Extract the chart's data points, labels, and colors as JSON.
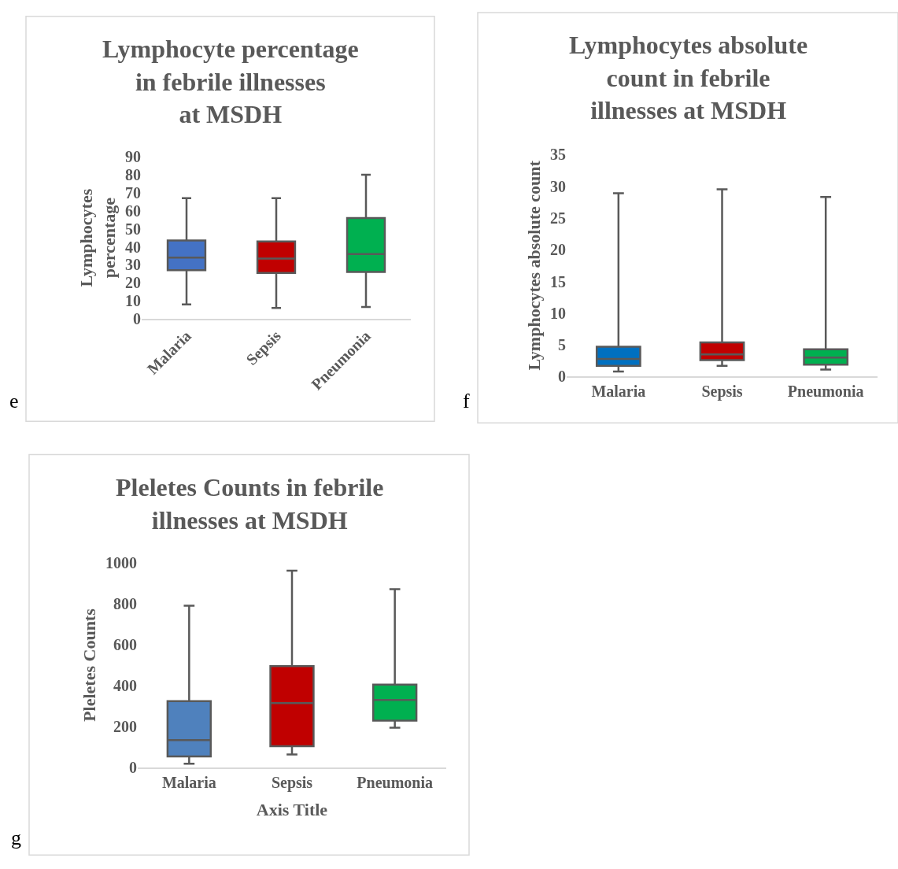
{
  "chart_data": [
    {
      "type": "box",
      "title": "Lymphocyte percentage in febrile illnesses at MSDH",
      "ylabel": "Lymphocytes percentage",
      "categories": [
        "Malaria",
        "Sepsis",
        "Pneumonia"
      ],
      "colors": [
        "#4472c4",
        "#c00000",
        "#00b050"
      ],
      "boxes": [
        {
          "low": 8,
          "q1": 27,
          "median": 34,
          "q3": 43.5,
          "high": 67
        },
        {
          "low": 6,
          "q1": 25.5,
          "median": 33.5,
          "q3": 43,
          "high": 67
        },
        {
          "low": 6.5,
          "q1": 26,
          "median": 36,
          "q3": 56,
          "high": 80
        }
      ],
      "ylim": [
        0,
        90
      ],
      "yticks": [
        0,
        10,
        20,
        30,
        40,
        50,
        60,
        70,
        80,
        90
      ],
      "grid": false,
      "annotations": [
        "e"
      ]
    },
    {
      "type": "box",
      "title": "Lymphocytes absolute count in febrile illnesses at MSDH",
      "ylabel": "Lymphocytes absolute count",
      "categories": [
        "Malaria",
        "Sepsis",
        "Pneumonia"
      ],
      "colors": [
        "#0070c0",
        "#c00000",
        "#00b050"
      ],
      "boxes": [
        {
          "low": 0.8,
          "q1": 1.7,
          "median": 2.8,
          "q3": 4.7,
          "high": 28.9
        },
        {
          "low": 1.7,
          "q1": 2.6,
          "median": 3.5,
          "q3": 5.4,
          "high": 29.5
        },
        {
          "low": 1.1,
          "q1": 1.9,
          "median": 3,
          "q3": 4.3,
          "high": 28.3
        }
      ],
      "ylim": [
        0,
        35
      ],
      "yticks": [
        0,
        5,
        10,
        15,
        20,
        25,
        30,
        35
      ],
      "grid": false,
      "annotations": [
        "f"
      ]
    },
    {
      "type": "box",
      "title": "Pleletes Counts in febrile illnesses at MSDH",
      "xlabel": "Axis Title",
      "ylabel": "Pleletes Counts",
      "categories": [
        "Malaria",
        "Sepsis",
        "Pneumonia"
      ],
      "colors": [
        "#4f81bd",
        "#c00000",
        "#00b050"
      ],
      "boxes": [
        {
          "low": 20,
          "q1": 55,
          "median": 135,
          "q3": 325,
          "high": 790
        },
        {
          "low": 65,
          "q1": 105,
          "median": 315,
          "q3": 495,
          "high": 960
        },
        {
          "low": 195,
          "q1": 230,
          "median": 330,
          "q3": 405,
          "high": 870
        }
      ],
      "ylim": [
        0,
        1000
      ],
      "yticks": [
        0,
        200,
        400,
        600,
        800,
        1000
      ],
      "grid": false,
      "annotations": [
        "g"
      ]
    }
  ]
}
